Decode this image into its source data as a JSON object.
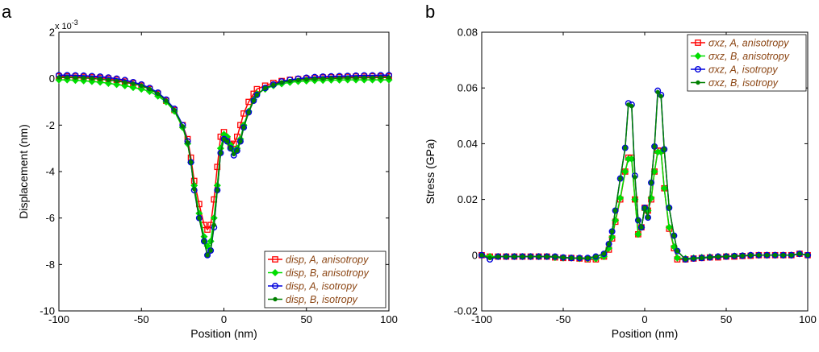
{
  "panels": {
    "a": {
      "letter": "a",
      "exponent_text": "x 10",
      "exponent_power": "-3"
    },
    "b": {
      "letter": "b"
    }
  },
  "chart_data": [
    {
      "type": "line",
      "panel": "a",
      "xlabel": "Position (nm)",
      "ylabel": "Displacement (nm)",
      "y_scale_multiplier": "x 10^-3",
      "xlim": [
        -100,
        100
      ],
      "ylim": [
        -10,
        2
      ],
      "xticks": [
        -100,
        -50,
        0,
        50,
        100
      ],
      "yticks": [
        2,
        0,
        -2,
        -4,
        -6,
        -8,
        -10
      ],
      "grid": false,
      "legend_position": "bottom-right",
      "x": [
        -100,
        -95,
        -90,
        -85,
        -80,
        -75,
        -70,
        -65,
        -60,
        -55,
        -50,
        -45,
        -40,
        -35,
        -30,
        -25,
        -22,
        -20,
        -18,
        -15,
        -12,
        -10,
        -8,
        -6,
        -4,
        -2,
        0,
        2,
        4,
        6,
        8,
        10,
        12,
        15,
        18,
        20,
        25,
        30,
        35,
        40,
        45,
        50,
        55,
        60,
        65,
        70,
        75,
        80,
        85,
        90,
        95,
        100
      ],
      "series": [
        {
          "name": "disp, A, anisotropy",
          "color": "#ff0000",
          "marker": "square",
          "values": [
            0.1,
            0.1,
            0.09,
            0.08,
            0.06,
            0.04,
            0.0,
            -0.05,
            -0.12,
            -0.2,
            -0.3,
            -0.45,
            -0.65,
            -0.95,
            -1.35,
            -2.0,
            -2.6,
            -3.4,
            -4.4,
            -5.4,
            -6.3,
            -6.5,
            -6.3,
            -5.2,
            -3.8,
            -2.5,
            -2.3,
            -2.6,
            -2.85,
            -2.8,
            -2.5,
            -2.0,
            -1.5,
            -1.0,
            -0.65,
            -0.45,
            -0.3,
            -0.18,
            -0.1,
            -0.05,
            -0.02,
            0.0,
            0.03,
            0.05,
            0.06,
            0.07,
            0.08,
            0.09,
            0.09,
            0.1,
            0.1,
            0.1
          ]
        },
        {
          "name": "disp, B, anisotropy",
          "color": "#00dd00",
          "marker": "diamond",
          "values": [
            -0.05,
            -0.05,
            -0.07,
            -0.09,
            -0.12,
            -0.15,
            -0.2,
            -0.25,
            -0.3,
            -0.38,
            -0.45,
            -0.55,
            -0.75,
            -1.0,
            -1.4,
            -2.1,
            -2.8,
            -3.6,
            -4.6,
            -5.8,
            -6.8,
            -7.2,
            -7.0,
            -6.0,
            -4.6,
            -3.0,
            -2.4,
            -2.5,
            -2.85,
            -3.1,
            -3.0,
            -2.6,
            -2.0,
            -1.4,
            -0.9,
            -0.65,
            -0.45,
            -0.3,
            -0.22,
            -0.16,
            -0.12,
            -0.1,
            -0.08,
            -0.07,
            -0.06,
            -0.06,
            -0.05,
            -0.05,
            -0.05,
            -0.05,
            -0.05,
            -0.05
          ]
        },
        {
          "name": "disp, A, isotropy",
          "color": "#0000dd",
          "marker": "circle",
          "values": [
            0.15,
            0.15,
            0.14,
            0.13,
            0.11,
            0.09,
            0.05,
            0.0,
            -0.06,
            -0.15,
            -0.25,
            -0.4,
            -0.6,
            -0.9,
            -1.3,
            -2.0,
            -2.7,
            -3.6,
            -4.8,
            -6.0,
            -7.0,
            -7.6,
            -7.4,
            -6.4,
            -4.8,
            -3.2,
            -2.6,
            -2.7,
            -3.0,
            -3.3,
            -3.1,
            -2.7,
            -2.1,
            -1.45,
            -0.95,
            -0.7,
            -0.4,
            -0.25,
            -0.12,
            -0.05,
            0.0,
            0.04,
            0.07,
            0.09,
            0.1,
            0.11,
            0.12,
            0.13,
            0.14,
            0.14,
            0.15,
            0.15
          ]
        },
        {
          "name": "disp, B, isotropy",
          "color": "#008000",
          "marker": "dot",
          "values": [
            0.05,
            0.05,
            0.04,
            0.03,
            0.01,
            -0.02,
            -0.06,
            -0.1,
            -0.16,
            -0.22,
            -0.3,
            -0.45,
            -0.65,
            -0.95,
            -1.35,
            -2.05,
            -2.75,
            -3.6,
            -4.75,
            -6.0,
            -7.0,
            -7.6,
            -7.4,
            -6.3,
            -4.8,
            -3.2,
            -2.6,
            -2.7,
            -3.0,
            -3.25,
            -3.1,
            -2.7,
            -2.1,
            -1.45,
            -0.95,
            -0.7,
            -0.4,
            -0.27,
            -0.16,
            -0.1,
            -0.06,
            -0.03,
            -0.01,
            0.0,
            0.01,
            0.02,
            0.03,
            0.03,
            0.04,
            0.04,
            0.05,
            0.05
          ]
        }
      ]
    },
    {
      "type": "line",
      "panel": "b",
      "xlabel": "Position (nm)",
      "ylabel": "Stress (GPa)",
      "xlim": [
        -100,
        100
      ],
      "ylim": [
        -0.02,
        0.08
      ],
      "xticks": [
        -100,
        -50,
        0,
        50,
        100
      ],
      "yticks": [
        0.08,
        0.06,
        0.04,
        0.02,
        0,
        -0.02
      ],
      "ytick_labels": [
        "0.08",
        "0.06",
        "0.04",
        "0.02",
        "0",
        "-0.02"
      ],
      "grid": false,
      "legend_position": "top-right",
      "x": [
        -100,
        -95,
        -90,
        -85,
        -80,
        -75,
        -70,
        -65,
        -60,
        -55,
        -50,
        -45,
        -40,
        -35,
        -30,
        -25,
        -22,
        -20,
        -18,
        -15,
        -12,
        -10,
        -8,
        -6,
        -4,
        -2,
        0,
        2,
        4,
        6,
        8,
        10,
        12,
        15,
        18,
        20,
        25,
        30,
        35,
        40,
        45,
        50,
        55,
        60,
        65,
        70,
        75,
        80,
        85,
        90,
        95,
        100
      ],
      "series": [
        {
          "name": "σxz, A, anisotropy",
          "color": "#ff0000",
          "marker": "square",
          "values": [
            0.0,
            -0.0005,
            -0.0005,
            -0.0005,
            -0.0005,
            -0.0005,
            -0.0005,
            -0.0005,
            -0.0005,
            -0.0008,
            -0.001,
            -0.001,
            -0.0012,
            -0.0015,
            -0.0015,
            -0.0005,
            0.002,
            0.006,
            0.012,
            0.02,
            0.03,
            0.035,
            0.035,
            0.02,
            0.0075,
            0.01,
            0.017,
            0.016,
            0.02,
            0.03,
            0.0375,
            0.0375,
            0.024,
            0.0095,
            0.0025,
            -0.0015,
            -0.0015,
            -0.0012,
            -0.001,
            -0.0008,
            -0.0008,
            -0.0005,
            -0.0005,
            -0.0003,
            -0.0002,
            0.0,
            0.0,
            0.0,
            0.0,
            0.0,
            0.0005,
            0.0
          ]
        },
        {
          "name": "σxz, B, anisotropy",
          "color": "#00dd00",
          "marker": "diamond",
          "values": [
            0.0,
            -0.0005,
            -0.0005,
            -0.0005,
            -0.0005,
            -0.0005,
            -0.0005,
            -0.0005,
            -0.0005,
            -0.0008,
            -0.001,
            -0.001,
            -0.0012,
            -0.0013,
            -0.0013,
            -0.0005,
            0.0025,
            0.0065,
            0.0125,
            0.0205,
            0.03,
            0.0345,
            0.0345,
            0.02,
            0.0075,
            0.01,
            0.0165,
            0.016,
            0.0205,
            0.03,
            0.037,
            0.037,
            0.024,
            0.01,
            0.003,
            -0.001,
            -0.0012,
            -0.001,
            -0.0008,
            -0.0006,
            -0.0005,
            -0.0004,
            -0.0003,
            -0.0002,
            -0.0001,
            0.0,
            0.0,
            0.0,
            0.0,
            0.0,
            0.0005,
            0.0
          ]
        },
        {
          "name": "σxz, A, isotropy",
          "color": "#0000dd",
          "marker": "circle",
          "values": [
            0.0,
            -0.0015,
            -0.0005,
            -0.0005,
            -0.0005,
            -0.0005,
            -0.0005,
            -0.0005,
            -0.0005,
            -0.0005,
            -0.0008,
            -0.001,
            -0.001,
            -0.001,
            -0.0005,
            0.0005,
            0.004,
            0.0085,
            0.016,
            0.0275,
            0.0385,
            0.0545,
            0.054,
            0.0285,
            0.0125,
            0.01,
            0.017,
            0.0135,
            0.026,
            0.039,
            0.059,
            0.0575,
            0.038,
            0.017,
            0.007,
            0.0015,
            -0.0015,
            -0.0012,
            -0.001,
            -0.0008,
            -0.0005,
            -0.0005,
            -0.0003,
            -0.0002,
            0.0,
            0.0,
            0.0,
            0.0,
            0.0,
            0.0,
            0.0005,
            0.0
          ]
        },
        {
          "name": "σxz, B, isotropy",
          "color": "#008000",
          "marker": "dot",
          "values": [
            0.0,
            -0.001,
            -0.0005,
            -0.0005,
            -0.0005,
            -0.0005,
            -0.0005,
            -0.0005,
            -0.0005,
            -0.0005,
            -0.0008,
            -0.001,
            -0.001,
            -0.001,
            -0.0005,
            0.0005,
            0.004,
            0.0085,
            0.016,
            0.0275,
            0.0385,
            0.054,
            0.0535,
            0.028,
            0.0125,
            0.01,
            0.017,
            0.0135,
            0.026,
            0.039,
            0.0585,
            0.057,
            0.038,
            0.017,
            0.007,
            0.0015,
            -0.0015,
            -0.0012,
            -0.001,
            -0.0008,
            -0.0005,
            -0.0005,
            -0.0003,
            -0.0002,
            0.0,
            0.0,
            0.0,
            0.0,
            0.0,
            0.0,
            0.0005,
            0.0
          ]
        }
      ]
    }
  ]
}
